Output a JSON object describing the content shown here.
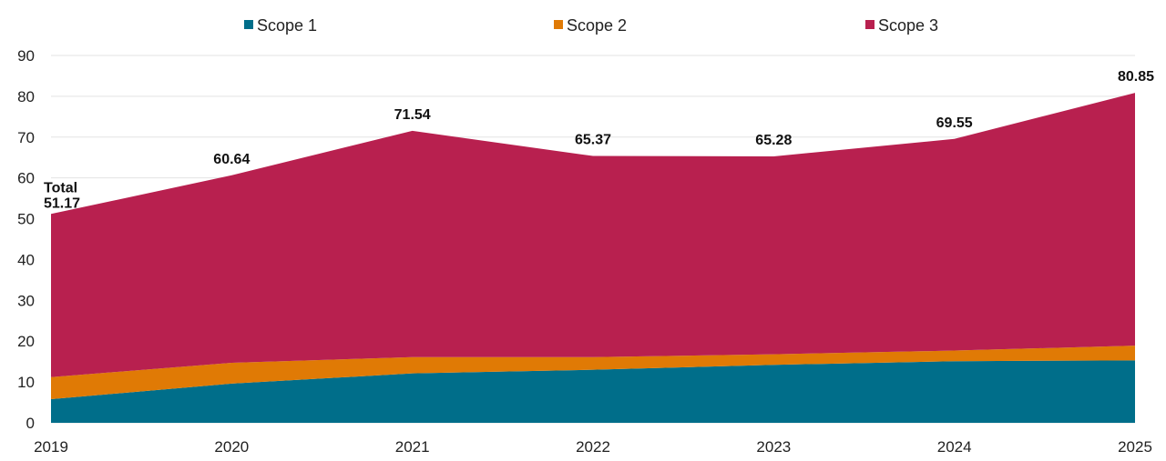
{
  "chart_data": {
    "type": "area",
    "stacked": true,
    "x": [
      "2019",
      "2020",
      "2021",
      "2022",
      "2023",
      "2024",
      "2025"
    ],
    "ylim": [
      0,
      90
    ],
    "yticks": [
      "0",
      "10",
      "20",
      "30",
      "40",
      "50",
      "60",
      "70",
      "80",
      "90"
    ],
    "grid": true,
    "legend_position": "top-center",
    "series": [
      {
        "name": "Scope 1",
        "color": "#006e8a",
        "values": [
          5.8,
          9.6,
          12.1,
          13.0,
          14.2,
          15.1,
          15.3
        ]
      },
      {
        "name": "Scope 2",
        "color": "#e07a05",
        "values": [
          5.4,
          5.1,
          4.0,
          3.1,
          2.6,
          2.6,
          3.6
        ]
      },
      {
        "name": "Scope 3",
        "color": "#b8204f",
        "values": [
          39.97,
          45.94,
          55.44,
          49.27,
          48.48,
          51.85,
          61.95
        ]
      }
    ],
    "totals": [
      51.17,
      60.64,
      71.54,
      65.37,
      65.28,
      69.55,
      80.85
    ],
    "total_labels": [
      "51.17",
      "60.64",
      "71.54",
      "65.37",
      "65.28",
      "69.55",
      "80.85"
    ],
    "total_first_prefix": "Total"
  }
}
